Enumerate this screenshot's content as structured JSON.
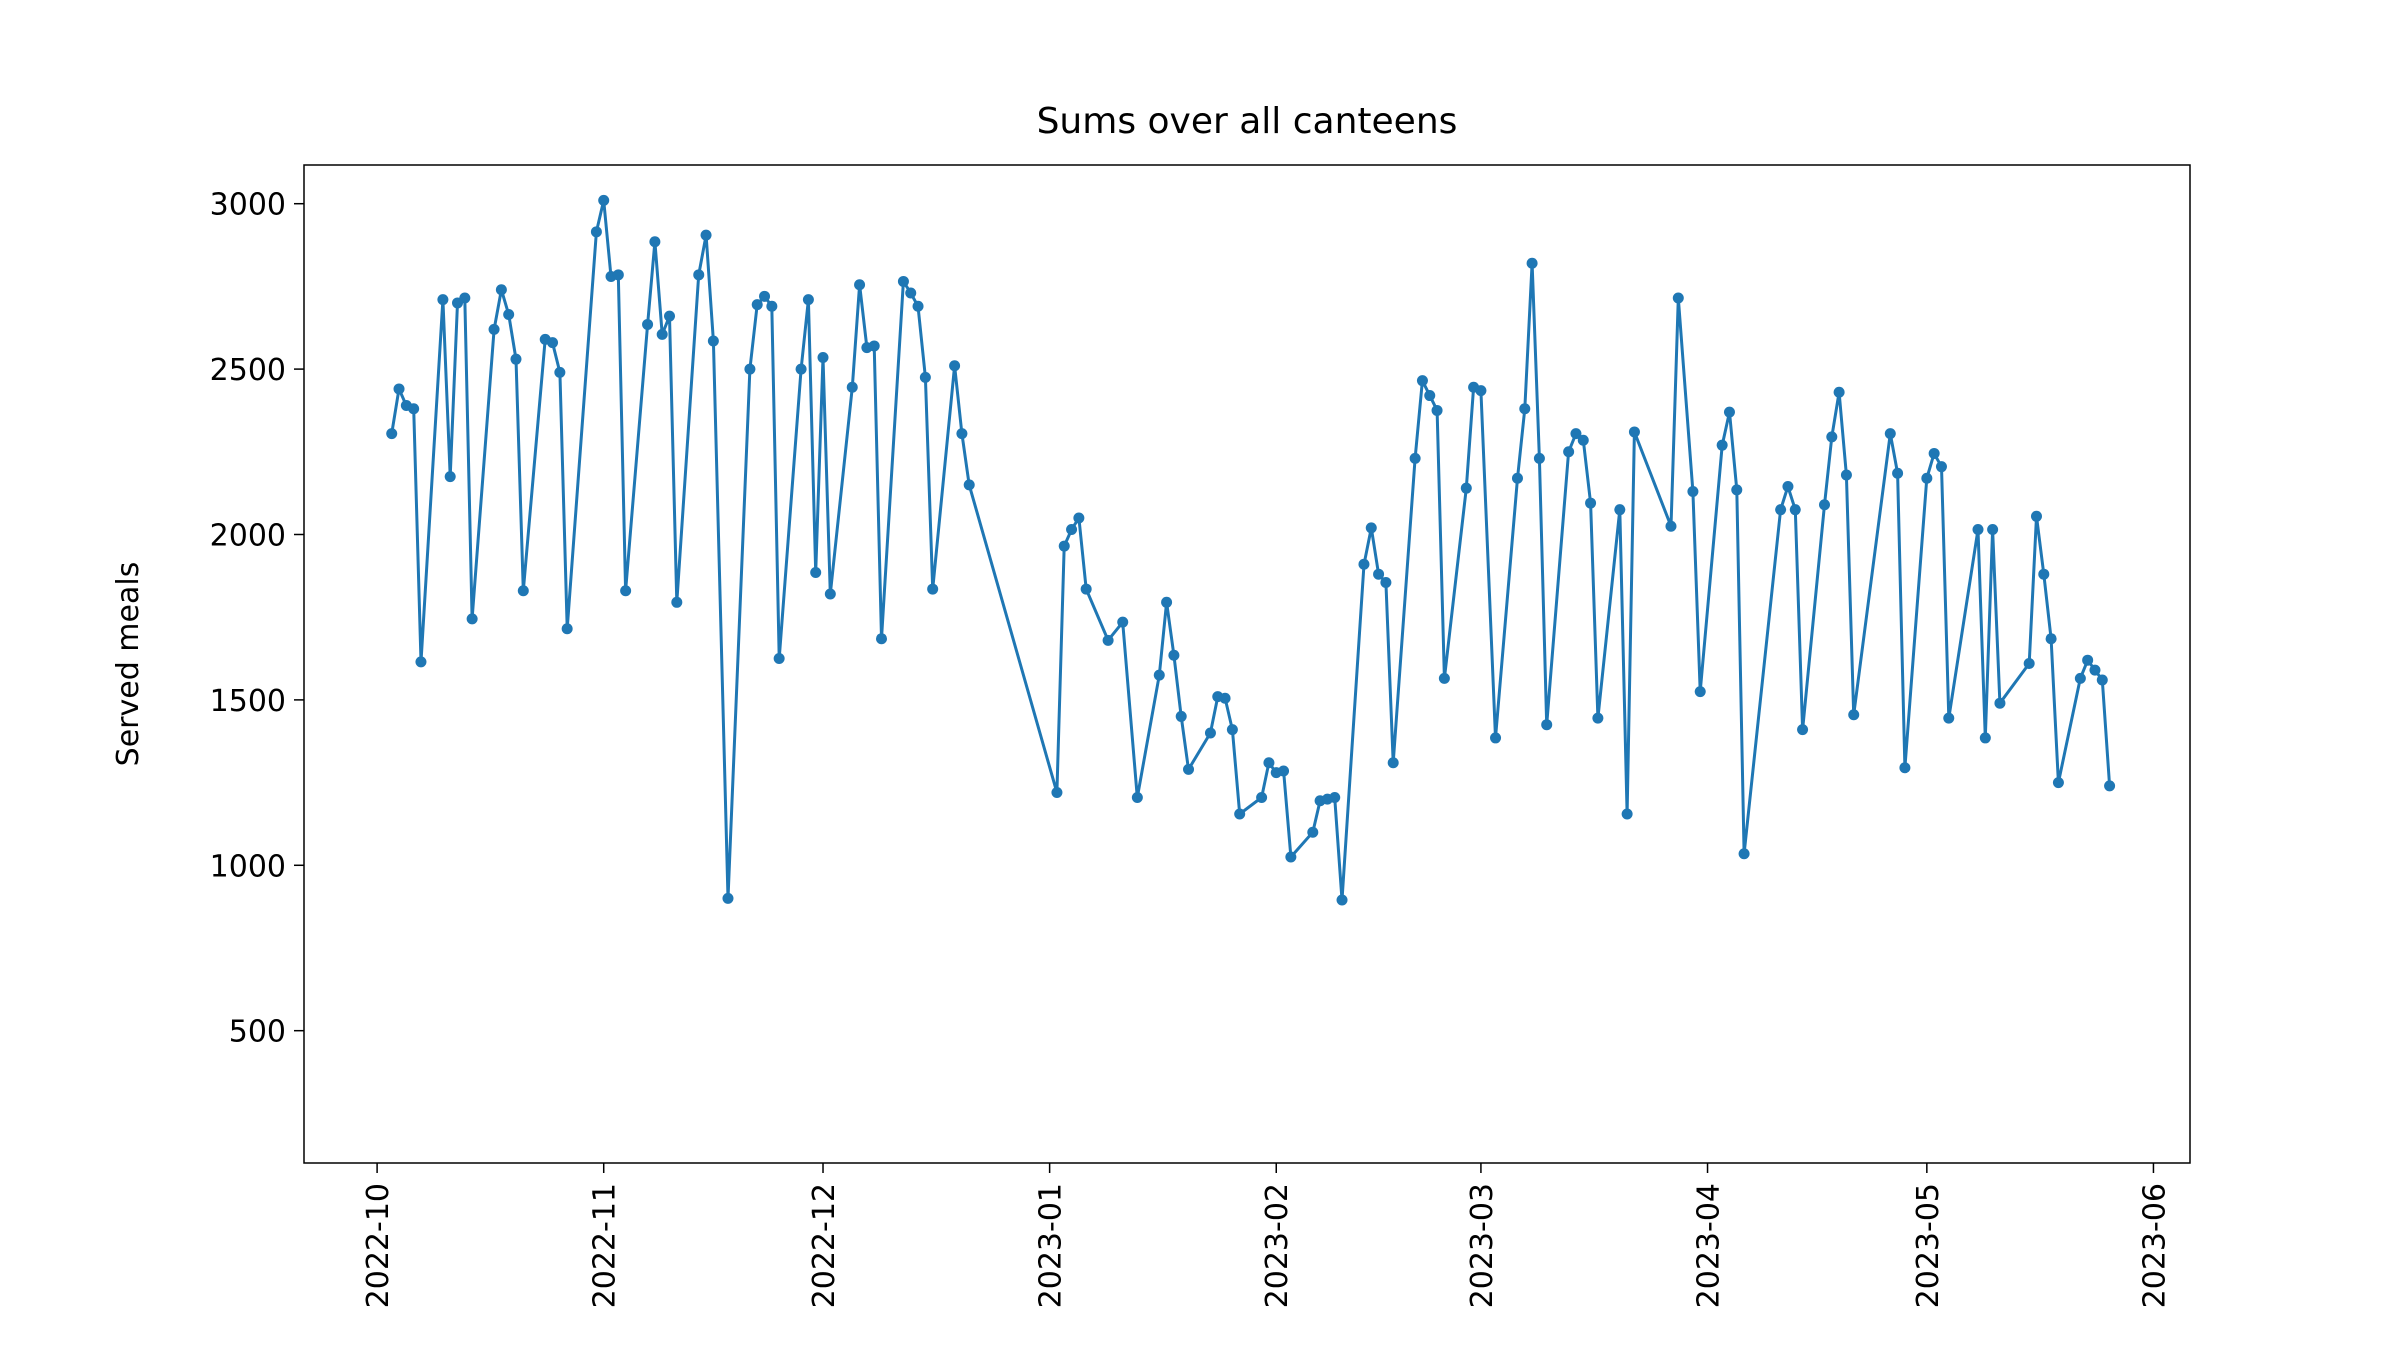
{
  "chart_data": {
    "type": "line",
    "title": "Sums over all canteens",
    "y_label": "Served meals",
    "x": [
      "2022-10-03",
      "2022-10-04",
      "2022-10-05",
      "2022-10-06",
      "2022-10-07",
      "2022-10-10",
      "2022-10-11",
      "2022-10-12",
      "2022-10-13",
      "2022-10-14",
      "2022-10-17",
      "2022-10-18",
      "2022-10-19",
      "2022-10-20",
      "2022-10-21",
      "2022-10-24",
      "2022-10-25",
      "2022-10-26",
      "2022-10-27",
      "2022-10-31",
      "2022-11-01",
      "2022-11-02",
      "2022-11-03",
      "2022-11-04",
      "2022-11-07",
      "2022-11-08",
      "2022-11-09",
      "2022-11-10",
      "2022-11-11",
      "2022-11-14",
      "2022-11-15",
      "2022-11-16",
      "2022-11-18",
      "2022-11-21",
      "2022-11-22",
      "2022-11-23",
      "2022-11-24",
      "2022-11-25",
      "2022-11-28",
      "2022-11-29",
      "2022-11-30",
      "2022-12-01",
      "2022-12-02",
      "2022-12-05",
      "2022-12-06",
      "2022-12-07",
      "2022-12-08",
      "2022-12-09",
      "2022-12-12",
      "2022-12-13",
      "2022-12-14",
      "2022-12-15",
      "2022-12-16",
      "2022-12-19",
      "2022-12-20",
      "2022-12-21",
      "2023-01-02",
      "2023-01-03",
      "2023-01-04",
      "2023-01-05",
      "2023-01-06",
      "2023-01-09",
      "2023-01-11",
      "2023-01-13",
      "2023-01-16",
      "2023-01-17",
      "2023-01-18",
      "2023-01-19",
      "2023-01-20",
      "2023-01-23",
      "2023-01-24",
      "2023-01-25",
      "2023-01-26",
      "2023-01-27",
      "2023-01-30",
      "2023-01-31",
      "2023-02-01",
      "2023-02-02",
      "2023-02-03",
      "2023-02-06",
      "2023-02-07",
      "2023-02-08",
      "2023-02-09",
      "2023-02-10",
      "2023-02-13",
      "2023-02-14",
      "2023-02-15",
      "2023-02-16",
      "2023-02-17",
      "2023-02-20",
      "2023-02-21",
      "2023-02-22",
      "2023-02-23",
      "2023-02-24",
      "2023-02-27",
      "2023-02-28",
      "2023-03-01",
      "2023-03-03",
      "2023-03-06",
      "2023-03-07",
      "2023-03-08",
      "2023-03-09",
      "2023-03-10",
      "2023-03-13",
      "2023-03-14",
      "2023-03-15",
      "2023-03-16",
      "2023-03-17",
      "2023-03-20",
      "2023-03-21",
      "2023-03-22",
      "2023-03-27",
      "2023-03-28",
      "2023-03-30",
      "2023-03-31",
      "2023-04-03",
      "2023-04-04",
      "2023-04-05",
      "2023-04-06",
      "2023-04-11",
      "2023-04-12",
      "2023-04-13",
      "2023-04-14",
      "2023-04-17",
      "2023-04-18",
      "2023-04-19",
      "2023-04-20",
      "2023-04-21",
      "2023-04-26",
      "2023-04-27",
      "2023-04-28",
      "2023-05-01",
      "2023-05-02",
      "2023-05-03",
      "2023-05-04",
      "2023-05-08",
      "2023-05-09",
      "2023-05-10",
      "2023-05-11",
      "2023-05-15",
      "2023-05-16",
      "2023-05-17",
      "2023-05-18",
      "2023-05-19",
      "2023-05-22",
      "2023-05-23",
      "2023-05-24",
      "2023-05-25",
      "2023-05-26"
    ],
    "series": [
      {
        "name": "Served meals",
        "color": "#1f77b4",
        "values": [
          2305,
          2440,
          2390,
          2380,
          1615,
          2710,
          2175,
          2700,
          2715,
          1745,
          2620,
          2740,
          2665,
          2530,
          1830,
          2590,
          2580,
          2490,
          1715,
          2915,
          3010,
          2780,
          2785,
          1830,
          2635,
          2885,
          2605,
          2660,
          1795,
          2785,
          2905,
          2585,
          900,
          2500,
          2695,
          2720,
          2690,
          1625,
          2500,
          2710,
          1885,
          2535,
          1820,
          2445,
          2755,
          2565,
          2570,
          1685,
          2765,
          2730,
          2690,
          2475,
          1835,
          2510,
          2305,
          2150,
          1220,
          1965,
          2015,
          2050,
          1835,
          1680,
          1735,
          1205,
          1575,
          1795,
          1635,
          1450,
          1290,
          1400,
          1510,
          1505,
          1410,
          1155,
          1205,
          1310,
          1280,
          1285,
          1025,
          1100,
          1195,
          1200,
          1205,
          895,
          1910,
          2020,
          1880,
          1855,
          1310,
          2230,
          2465,
          2420,
          2375,
          1565,
          2140,
          2445,
          2435,
          1385,
          2170,
          2380,
          2820,
          2230,
          1425,
          2250,
          2305,
          2285,
          2095,
          1445,
          2075,
          1155,
          2310,
          2025,
          2715,
          2130,
          1525,
          2270,
          2370,
          2135,
          1035,
          2075,
          2145,
          2075,
          1410,
          2090,
          2295,
          2430,
          2180,
          1455,
          2305,
          2185,
          1295,
          2170,
          2245,
          2205,
          1445,
          2015,
          1385,
          2015,
          1490,
          1610,
          2055,
          1880,
          1685,
          1250,
          1565,
          1620,
          1590,
          1560,
          1240
        ]
      }
    ],
    "xlim": [
      "2022-09-21",
      "2023-06-06"
    ],
    "xticks": [
      {
        "value": "2022-10-01",
        "label": "2022-10"
      },
      {
        "value": "2022-11-01",
        "label": "2022-11"
      },
      {
        "value": "2022-12-01",
        "label": "2022-12"
      },
      {
        "value": "2023-01-01",
        "label": "2023-01"
      },
      {
        "value": "2023-02-01",
        "label": "2023-02"
      },
      {
        "value": "2023-03-01",
        "label": "2023-03"
      },
      {
        "value": "2023-04-01",
        "label": "2023-04"
      },
      {
        "value": "2023-05-01",
        "label": "2023-05"
      },
      {
        "value": "2023-06-01",
        "label": "2023-06"
      }
    ],
    "ylim": [
      100,
      3117
    ],
    "yticks": [
      500,
      1000,
      1500,
      2000,
      2500,
      3000
    ],
    "grid": false
  }
}
